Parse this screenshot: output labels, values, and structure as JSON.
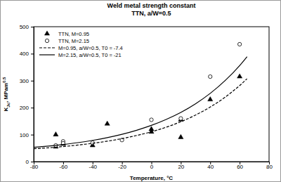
{
  "chart_data": {
    "type": "scatter",
    "title": "Weld metal strength constant",
    "subtitle": "TTN, a/W=0.5",
    "xlabel": "Temperature, °C",
    "ylabel": [
      "K",
      "Jc",
      ", MPam",
      "0.5"
    ],
    "xlim": [
      -80,
      80
    ],
    "xticks": [
      -80,
      -60,
      -40,
      -20,
      0,
      20,
      40,
      60,
      80
    ],
    "ylim": [
      0,
      500
    ],
    "yticks": [
      0,
      100,
      200,
      300,
      400,
      500
    ],
    "grid": false,
    "legend": "upper-left",
    "series": [
      {
        "name": "TTN, M=0.95",
        "type": "scatter",
        "marker": "triangle",
        "color": "#000000",
        "x": [
          -65,
          -65,
          -60,
          -40,
          -30,
          0,
          0,
          20,
          20,
          40,
          60
        ],
        "values": [
          100,
          55,
          65,
          60,
          140,
          110,
          120,
          90,
          155,
          230,
          315
        ]
      },
      {
        "name": "TTN, M=2.15",
        "type": "scatter",
        "marker": "open-circle",
        "color": "#000000",
        "x": [
          -65,
          -60,
          -60,
          -40,
          -20,
          0,
          20,
          40,
          60
        ],
        "values": [
          60,
          75,
          68,
          70,
          80,
          155,
          160,
          315,
          435
        ]
      },
      {
        "name": "M=0.95, a/W=0.5, T0 = -7.4",
        "type": "line",
        "line_style": "dashed",
        "color": "#000000",
        "x": [
          -80,
          -70,
          -60,
          -50,
          -40,
          -30,
          -20,
          -10,
          0,
          10,
          20,
          30,
          40,
          50,
          60,
          65
        ],
        "values": [
          47.6,
          51.3,
          55.9,
          61.3,
          67.8,
          75.7,
          85.3,
          96.9,
          110.6,
          127.4,
          147.8,
          172.5,
          202.3,
          238.3,
          281.9,
          307
        ]
      },
      {
        "name": "M=2.15, a/W=0.5, T0 = -21",
        "type": "line",
        "line_style": "solid",
        "color": "#000000",
        "x": [
          -80,
          -70,
          -60,
          -50,
          -40,
          -30,
          -20,
          -10,
          0,
          10,
          20,
          30,
          40,
          50,
          60,
          65
        ],
        "values": [
          52.8,
          57.6,
          63.4,
          70.3,
          78.8,
          89,
          101.3,
          116.3,
          134.3,
          156.2,
          182.5,
          214.5,
          253,
          299.8,
          356,
          388.7
        ]
      }
    ]
  }
}
